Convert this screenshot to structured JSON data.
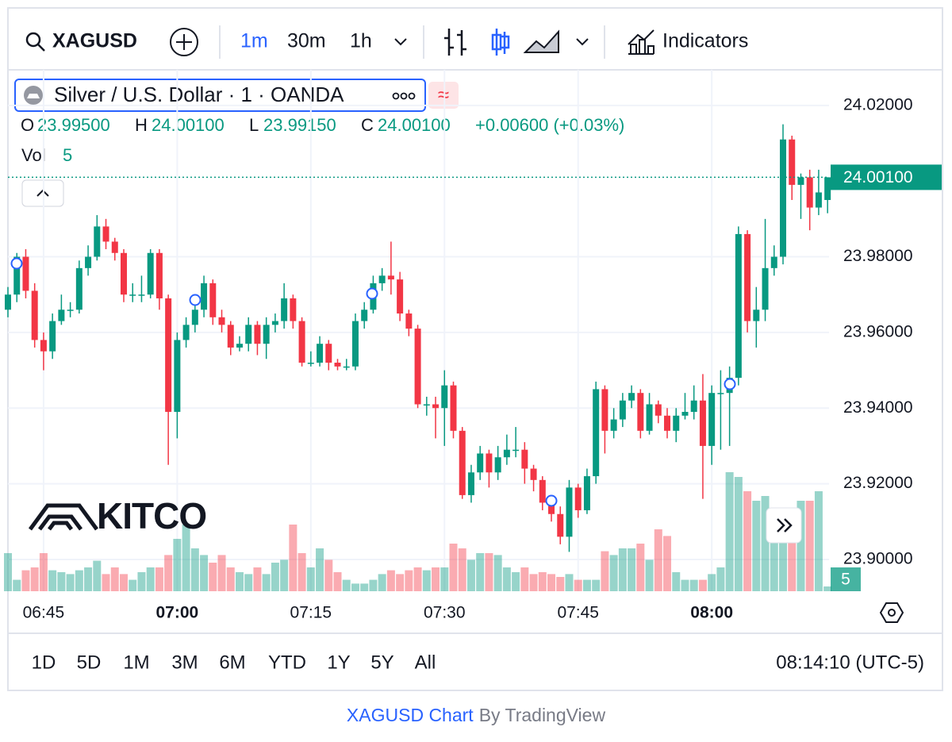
{
  "toolbar": {
    "symbol": "XAGUSD",
    "intervals": [
      "1m",
      "30m",
      "1h"
    ],
    "indicators": "Indicators"
  },
  "legend": {
    "title": "Silver / U.S. Dollar · 1 · OANDA",
    "open_label": "O",
    "open": "23.99500",
    "high_label": "H",
    "high": "24.00100",
    "low_label": "L",
    "low": "23.99150",
    "close_label": "C",
    "close": "24.00100",
    "change": "+0.00600 (+0.03%)",
    "volume_label": "Vol"
  },
  "logo": "KITCO",
  "chart_data": {
    "type": "candlestick",
    "categories": [
      null,
      null,
      null,
      null,
      "06:45",
      null,
      null,
      null,
      null,
      null,
      null,
      null,
      null,
      null,
      null,
      null,
      null,
      null,
      null,
      "07:00",
      null,
      null,
      null,
      null,
      null,
      null,
      null,
      null,
      null,
      null,
      null,
      null,
      null,
      null,
      "07:15",
      null,
      null,
      null,
      null,
      null,
      null,
      null,
      null,
      null,
      null,
      null,
      null,
      null,
      null,
      "07:30",
      null,
      null,
      null,
      null,
      null,
      null,
      null,
      null,
      null,
      null,
      null,
      null,
      null,
      null,
      "07:45",
      null,
      null,
      null,
      null,
      null,
      null,
      null,
      null,
      null,
      null,
      null,
      null,
      null,
      null,
      "08:00",
      null,
      null,
      null,
      null,
      null,
      null,
      null,
      null,
      null,
      null,
      null,
      null,
      null
    ],
    "ohlc": [
      [
        23.966,
        23.972,
        23.964,
        23.97
      ],
      [
        23.97,
        23.981,
        23.968,
        23.98
      ],
      [
        23.98,
        23.982,
        23.969,
        23.971
      ],
      [
        23.971,
        23.973,
        23.956,
        23.958
      ],
      [
        23.958,
        23.96,
        23.95,
        23.955
      ],
      [
        23.955,
        23.965,
        23.953,
        23.963
      ],
      [
        23.963,
        23.97,
        23.962,
        23.966
      ],
      [
        23.966,
        23.968,
        23.964,
        23.966
      ],
      [
        23.966,
        23.979,
        23.965,
        23.977
      ],
      [
        23.977,
        23.983,
        23.975,
        23.98
      ],
      [
        23.98,
        23.991,
        23.979,
        23.988
      ],
      [
        23.988,
        23.99,
        23.982,
        23.984
      ],
      [
        23.984,
        23.985,
        23.979,
        23.981
      ],
      [
        23.981,
        23.982,
        23.968,
        23.97
      ],
      [
        23.97,
        23.973,
        23.968,
        23.97
      ],
      [
        23.97,
        23.975,
        23.968,
        23.97
      ],
      [
        23.97,
        23.982,
        23.969,
        23.981
      ],
      [
        23.981,
        23.982,
        23.966,
        23.969
      ],
      [
        23.969,
        23.97,
        23.925,
        23.939
      ],
      [
        23.939,
        23.96,
        23.932,
        23.958
      ],
      [
        23.958,
        23.964,
        23.956,
        23.962
      ],
      [
        23.962,
        23.969,
        23.96,
        23.966
      ],
      [
        23.966,
        23.975,
        23.964,
        23.973
      ],
      [
        23.973,
        23.974,
        23.962,
        23.964
      ],
      [
        23.964,
        23.966,
        23.96,
        23.962
      ],
      [
        23.962,
        23.963,
        23.954,
        23.956
      ],
      [
        23.956,
        23.959,
        23.955,
        23.957
      ],
      [
        23.957,
        23.964,
        23.955,
        23.962
      ],
      [
        23.962,
        23.963,
        23.954,
        23.957
      ],
      [
        23.957,
        23.964,
        23.953,
        23.962
      ],
      [
        23.962,
        23.965,
        23.96,
        23.963
      ],
      [
        23.963,
        23.973,
        23.961,
        23.969
      ],
      [
        23.969,
        23.97,
        23.961,
        23.963
      ],
      [
        23.963,
        23.964,
        23.951,
        23.952
      ],
      [
        23.952,
        23.955,
        23.951,
        23.952
      ],
      [
        23.952,
        23.959,
        23.951,
        23.957
      ],
      [
        23.957,
        23.958,
        23.95,
        23.952
      ],
      [
        23.952,
        23.953,
        23.95,
        23.951
      ],
      [
        23.951,
        23.953,
        23.95,
        23.951
      ],
      [
        23.951,
        23.965,
        23.95,
        23.963
      ],
      [
        23.963,
        23.968,
        23.961,
        23.966
      ],
      [
        23.966,
        23.975,
        23.965,
        23.973
      ],
      [
        23.973,
        23.977,
        23.971,
        23.975
      ],
      [
        23.975,
        23.984,
        23.97,
        23.974
      ],
      [
        23.974,
        23.976,
        23.963,
        23.965
      ],
      [
        23.965,
        23.966,
        23.959,
        23.961
      ],
      [
        23.961,
        23.962,
        23.94,
        23.941
      ],
      [
        23.941,
        23.943,
        23.938,
        23.941
      ],
      [
        23.941,
        23.943,
        23.932,
        23.94
      ],
      [
        23.94,
        23.95,
        23.93,
        23.946
      ],
      [
        23.946,
        23.947,
        23.932,
        23.934
      ],
      [
        23.934,
        23.935,
        23.916,
        23.917
      ],
      [
        23.917,
        23.925,
        23.915,
        23.923
      ],
      [
        23.923,
        23.93,
        23.921,
        23.928
      ],
      [
        23.928,
        23.929,
        23.919,
        23.923
      ],
      [
        23.923,
        23.93,
        23.921,
        23.927
      ],
      [
        23.927,
        23.933,
        23.925,
        23.929
      ],
      [
        23.929,
        23.935,
        23.927,
        23.929
      ],
      [
        23.929,
        23.931,
        23.92,
        23.924
      ],
      [
        23.924,
        23.925,
        23.918,
        23.921
      ],
      [
        23.921,
        23.922,
        23.913,
        23.915
      ],
      [
        23.915,
        23.917,
        23.91,
        23.912
      ],
      [
        23.912,
        23.914,
        23.904,
        23.906
      ],
      [
        23.906,
        23.921,
        23.902,
        23.919
      ],
      [
        23.919,
        23.92,
        23.911,
        23.913
      ],
      [
        23.913,
        23.924,
        23.912,
        23.922
      ],
      [
        23.922,
        23.947,
        23.92,
        23.945
      ],
      [
        23.945,
        23.946,
        23.928,
        23.934
      ],
      [
        23.934,
        23.94,
        23.932,
        23.937
      ],
      [
        23.937,
        23.944,
        23.935,
        23.942
      ],
      [
        23.942,
        23.946,
        23.94,
        23.944
      ],
      [
        23.944,
        23.945,
        23.932,
        23.934
      ],
      [
        23.934,
        23.944,
        23.933,
        23.941
      ],
      [
        23.941,
        23.942,
        23.936,
        23.938
      ],
      [
        23.938,
        23.94,
        23.932,
        23.934
      ],
      [
        23.934,
        23.94,
        23.931,
        23.938
      ],
      [
        23.938,
        23.944,
        23.937,
        23.939
      ],
      [
        23.939,
        23.946,
        23.937,
        23.942
      ],
      [
        23.942,
        23.949,
        23.916,
        23.93
      ],
      [
        23.93,
        23.946,
        23.925,
        23.944
      ],
      [
        23.944,
        23.95,
        23.929,
        23.944
      ],
      [
        23.944,
        23.951,
        23.93,
        23.948
      ],
      [
        23.948,
        23.988,
        23.946,
        23.986
      ],
      [
        23.986,
        23.987,
        23.96,
        23.963
      ],
      [
        23.963,
        23.972,
        23.956,
        23.966
      ],
      [
        23.966,
        23.99,
        23.963,
        23.977
      ],
      [
        23.977,
        23.983,
        23.975,
        23.98
      ],
      [
        23.98,
        24.015,
        23.978,
        24.011
      ],
      [
        24.011,
        24.012,
        23.995,
        23.999
      ],
      [
        23.999,
        24.002,
        23.99,
        24.001
      ],
      [
        24.001,
        24.003,
        23.987,
        23.993
      ],
      [
        23.993,
        24.003,
        23.991,
        23.997
      ],
      [
        23.995,
        24.001,
        23.9915,
        24.001
      ]
    ],
    "volume": [
      40,
      12,
      22,
      25,
      40,
      22,
      20,
      18,
      22,
      25,
      32,
      18,
      25,
      18,
      12,
      20,
      25,
      25,
      38,
      55,
      70,
      45,
      38,
      30,
      38,
      25,
      20,
      18,
      25,
      18,
      30,
      33,
      70,
      40,
      25,
      45,
      33,
      20,
      12,
      8,
      8,
      12,
      18,
      22,
      18,
      22,
      25,
      22,
      25,
      25,
      50,
      45,
      33,
      40,
      40,
      38,
      25,
      20,
      25,
      18,
      20,
      18,
      15,
      18,
      12,
      12,
      12,
      42,
      38,
      45,
      45,
      50,
      33,
      65,
      58,
      20,
      12,
      12,
      12,
      18,
      25,
      125,
      120,
      105,
      95,
      100,
      75,
      65,
      58,
      95,
      95,
      105,
      5
    ],
    "ylim": [
      23.8916,
      24.0294
    ],
    "yticks": [
      {
        "value": 23.9,
        "label": "23.90000"
      },
      {
        "value": 23.92,
        "label": "23.92000"
      },
      {
        "value": 23.94,
        "label": "23.94000"
      },
      {
        "value": 23.96,
        "label": "23.96000"
      },
      {
        "value": 23.98,
        "label": "23.98000"
      },
      {
        "value": 24.02,
        "label": "24.02000"
      }
    ],
    "up_color": "#089981",
    "down_color": "#f23645",
    "grid": true
  },
  "ranges": [
    "1D",
    "5D",
    "1M",
    "3M",
    "6M",
    "YTD",
    "1Y",
    "5Y",
    "All"
  ],
  "clock": "08:14:10 (UTC-5)",
  "footer": {
    "link": "XAGUSD Chart",
    "by": "By TradingView"
  }
}
